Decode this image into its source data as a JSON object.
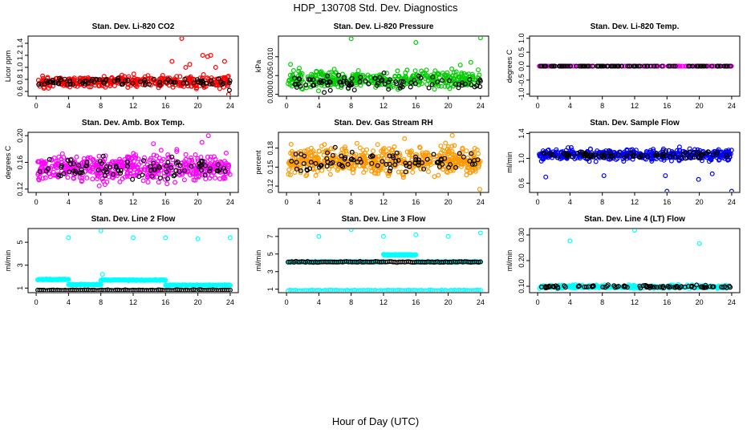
{
  "page": {
    "title": "HDP_130708  Std. Dev. Diagnostics",
    "xlabel": "Hour of Day (UTC)"
  },
  "chart_data": [
    {
      "type": "scatter",
      "title": "Stan. Dev. Li-820 CO2",
      "ylabel": "Licor ppm",
      "x_ticks": [
        0,
        4,
        8,
        12,
        16,
        20,
        24
      ],
      "xlim": [
        -1,
        25
      ],
      "y_ticks": [
        "0.6",
        "0.8",
        "1.0",
        "1.2",
        "1.4"
      ],
      "y_tick_values": [
        0.6,
        0.8,
        1.0,
        1.2,
        1.4
      ],
      "ylim": [
        0.52,
        1.52
      ],
      "series": [
        {
          "color": "#ff0000",
          "band": [
            0.62,
            0.92
          ],
          "center": 0.76,
          "count": 360,
          "outliers": [
            [
              18.0,
              1.48
            ],
            [
              18.5,
              1.0
            ],
            [
              19.0,
              1.05
            ],
            [
              20.6,
              1.2
            ],
            [
              21.2,
              1.18
            ],
            [
              21.6,
              1.2
            ],
            [
              22.2,
              1.0
            ],
            [
              23.3,
              1.1
            ],
            [
              23.8,
              0.55
            ],
            [
              16.8,
              1.1
            ]
          ]
        },
        {
          "color": "#000000",
          "band": [
            0.68,
            0.86
          ],
          "center": 0.76,
          "count": 80,
          "outliers": [
            [
              23.9,
              0.62
            ]
          ]
        }
      ]
    },
    {
      "type": "scatter",
      "title": "Stan. Dev. Li-820 Pressure",
      "ylabel": "kPa",
      "x_ticks": [
        0,
        4,
        8,
        12,
        16,
        20,
        24
      ],
      "xlim": [
        -1,
        25
      ],
      "y_ticks": [
        "0.000",
        "0.005",
        "0.010"
      ],
      "y_tick_values": [
        0,
        0.005,
        0.01
      ],
      "ylim": [
        -0.0005,
        0.0155
      ],
      "series": [
        {
          "color": "#00cc00",
          "band": [
            0.0,
            0.007
          ],
          "center": 0.004,
          "count": 400,
          "outliers": [
            [
              8.0,
              0.0148
            ],
            [
              16.0,
              0.0138
            ],
            [
              24.0,
              0.015
            ],
            [
              0.5,
              0.008
            ],
            [
              21.5,
              0.0078
            ],
            [
              22.8,
              0.0085
            ]
          ]
        },
        {
          "color": "#000000",
          "band": [
            0.0,
            0.006
          ],
          "center": 0.003,
          "count": 90,
          "outliers": []
        }
      ]
    },
    {
      "type": "scatter",
      "title": "Stan. Dev. Li-820 Temp.",
      "ylabel": "degrees C",
      "x_ticks": [
        0,
        4,
        8,
        12,
        16,
        20,
        24
      ],
      "xlim": [
        -1,
        25
      ],
      "y_ticks": [
        "-1.0",
        "-0.5",
        "0.0",
        "0.5",
        "1.0"
      ],
      "y_tick_values": [
        -1,
        -0.5,
        0,
        0.5,
        1
      ],
      "ylim": [
        -1.08,
        1.08
      ],
      "series": [
        {
          "color": "#ff00ff",
          "band": [
            0.0,
            0.0
          ],
          "center": 0.0,
          "count": 140,
          "outliers": []
        },
        {
          "color": "#000000",
          "band": [
            0.0,
            0.0
          ],
          "center": 0.0,
          "count": 100,
          "outliers": []
        }
      ]
    },
    {
      "type": "scatter",
      "title": "Stan. Dev. Amb. Box Temp.",
      "ylabel": "degrees C",
      "x_ticks": [
        0,
        4,
        8,
        12,
        16,
        20,
        24
      ],
      "xlim": [
        -1,
        25
      ],
      "y_ticks": [
        "0.12",
        "0.16",
        "0.20"
      ],
      "y_tick_values": [
        0.12,
        0.16,
        0.2
      ],
      "ylim": [
        0.115,
        0.205
      ],
      "series": [
        {
          "color": "#ff00ff",
          "band": [
            0.125,
            0.185
          ],
          "center": 0.152,
          "count": 520,
          "outliers": [
            [
              21.3,
              0.2
            ],
            [
              20.5,
              0.19
            ],
            [
              14.5,
              0.188
            ],
            [
              7.8,
              0.125
            ]
          ]
        },
        {
          "color": "#000000",
          "band": [
            0.13,
            0.18
          ],
          "center": 0.152,
          "count": 90,
          "outliers": []
        }
      ]
    },
    {
      "type": "scatter",
      "title": "Stan. Dev. Gas Stream RH",
      "ylabel": "percent",
      "x_ticks": [
        0,
        4,
        8,
        12,
        16,
        20,
        24
      ],
      "xlim": [
        -1,
        25
      ],
      "y_ticks": [
        "0.12",
        "0.15",
        "0.18"
      ],
      "y_tick_values": [
        0.12,
        0.15,
        0.18
      ],
      "ylim": [
        0.11,
        0.205
      ],
      "series": [
        {
          "color": "#ff9900",
          "band": [
            0.125,
            0.19
          ],
          "center": 0.16,
          "count": 560,
          "outliers": [
            [
              20.5,
              0.2
            ],
            [
              14.6,
              0.195
            ],
            [
              23.9,
              0.115
            ]
          ]
        },
        {
          "color": "#000000",
          "band": [
            0.135,
            0.185
          ],
          "center": 0.16,
          "count": 90,
          "outliers": []
        }
      ]
    },
    {
      "type": "scatter",
      "title": "Stan. Dev. Sample Flow",
      "ylabel": "ml/min",
      "x_ticks": [
        0,
        4,
        8,
        12,
        16,
        20,
        24
      ],
      "xlim": [
        -1,
        25
      ],
      "y_ticks": [
        "0.6",
        "1.0",
        "1.4"
      ],
      "y_tick_values": [
        0.6,
        1.0,
        1.4
      ],
      "ylim": [
        0.45,
        1.42
      ],
      "series": [
        {
          "color": "#0000ff",
          "band": [
            0.92,
            1.2
          ],
          "center": 1.06,
          "count": 460,
          "outliers": [
            [
              16.0,
              0.47
            ],
            [
              24.0,
              0.47
            ],
            [
              1.0,
              0.7
            ],
            [
              8.2,
              0.72
            ],
            [
              21.6,
              0.75
            ],
            [
              15.8,
              0.72
            ],
            [
              19.9,
              0.66
            ]
          ]
        },
        {
          "color": "#000000",
          "band": [
            0.98,
            1.14
          ],
          "center": 1.06,
          "count": 90,
          "outliers": []
        }
      ]
    },
    {
      "type": "scatter",
      "title": "Stan. Dev. Line 2 Flow",
      "ylabel": "ml/min",
      "x_ticks": [
        0,
        4,
        8,
        12,
        16,
        20,
        24
      ],
      "xlim": [
        -1,
        25
      ],
      "y_ticks": [
        "1",
        "3",
        "5"
      ],
      "y_tick_values": [
        1,
        3,
        5
      ],
      "ylim": [
        0.6,
        6.2
      ],
      "series": [
        {
          "color": "#00ffff",
          "segments": [
            [
              0.2,
              4.0,
              1.75
            ],
            [
              4.0,
              8.0,
              1.3
            ],
            [
              8.0,
              16.0,
              1.7
            ],
            [
              16.0,
              24.0,
              1.25
            ]
          ],
          "count": 320,
          "outliers": [
            [
              4.0,
              5.4
            ],
            [
              8.0,
              6.0
            ],
            [
              12.0,
              5.4
            ],
            [
              16.0,
              5.4
            ],
            [
              20.0,
              5.3
            ],
            [
              24.0,
              5.4
            ],
            [
              0.2,
              0.8
            ],
            [
              8.2,
              2.2
            ]
          ]
        },
        {
          "color": "#000000",
          "segments": [
            [
              0.2,
              24.0,
              0.82
            ]
          ],
          "count": 100,
          "outliers": []
        }
      ]
    },
    {
      "type": "scatter",
      "title": "Stan. Dev. Line 3 Flow",
      "ylabel": "ml/min",
      "x_ticks": [
        0,
        4,
        8,
        12,
        16,
        20,
        24
      ],
      "xlim": [
        -1,
        25
      ],
      "y_ticks": [
        "1",
        "3",
        "5",
        "7"
      ],
      "y_tick_values": [
        1,
        3,
        5,
        7
      ],
      "ylim": [
        0.6,
        7.9
      ],
      "series": [
        {
          "color": "#00ffff",
          "segments": [
            [
              0.2,
              24.0,
              0.85
            ],
            [
              0.2,
              12.0,
              4.1
            ],
            [
              12.0,
              16.0,
              4.9
            ],
            [
              16.0,
              24.0,
              4.1
            ]
          ],
          "count": 420,
          "outliers": [
            [
              4.0,
              7.0
            ],
            [
              8.0,
              7.8
            ],
            [
              12.0,
              7.0
            ],
            [
              16.0,
              7.2
            ],
            [
              20.0,
              7.0
            ],
            [
              24.0,
              7.4
            ]
          ]
        },
        {
          "color": "#000000",
          "segments": [
            [
              0.2,
              24.0,
              4.1
            ]
          ],
          "count": 100,
          "outliers": []
        }
      ]
    },
    {
      "type": "scatter",
      "title": "Stan. Dev. Line 4 (LT) Flow",
      "ylabel": "ml/min",
      "x_ticks": [
        0,
        4,
        8,
        12,
        16,
        20,
        24
      ],
      "xlim": [
        -1,
        25
      ],
      "y_ticks": [
        "0.10",
        "0.20",
        "0.30"
      ],
      "y_tick_values": [
        0.1,
        0.2,
        0.3
      ],
      "ylim": [
        0.075,
        0.325
      ],
      "series": [
        {
          "color": "#00ffff",
          "band": [
            0.088,
            0.108
          ],
          "center": 0.098,
          "count": 380,
          "outliers": [
            [
              4.0,
              0.277
            ],
            [
              12.0,
              0.318
            ],
            [
              20.0,
              0.267
            ]
          ]
        },
        {
          "color": "#000000",
          "band": [
            0.09,
            0.106
          ],
          "center": 0.098,
          "count": 90,
          "outliers": []
        }
      ]
    }
  ]
}
